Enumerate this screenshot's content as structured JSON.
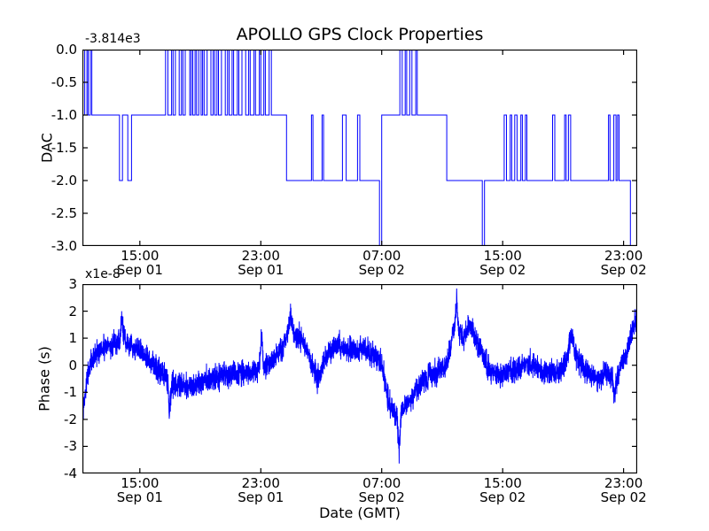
{
  "figure": {
    "background": "#ffffff",
    "frame_color": "#000000"
  },
  "chart_data": [
    {
      "id": "chart-dac",
      "type": "line",
      "subtype": "step",
      "title": "APOLLO GPS Clock Properties",
      "ylabel": "DAC",
      "offset_text": "-3.814e3",
      "line_color": "#0000ff",
      "x_unit": "hours since Sep 01 00:00 GMT",
      "xlim": [
        11.2,
        47.9
      ],
      "ylim": [
        -3,
        0
      ],
      "grid": false,
      "yticks": [
        {
          "v": 0,
          "label": "0.0"
        },
        {
          "v": -0.5,
          "label": "-0.5"
        },
        {
          "v": -1,
          "label": "-1.0"
        },
        {
          "v": -1.5,
          "label": "-1.5"
        },
        {
          "v": -2,
          "label": "-2.0"
        },
        {
          "v": -2.5,
          "label": "-2.5"
        },
        {
          "v": -3,
          "label": "-3.0"
        }
      ],
      "xticks": [
        {
          "t": 15,
          "time": "15:00",
          "date": "Sep 01"
        },
        {
          "t": 23,
          "time": "23:00",
          "date": "Sep 01"
        },
        {
          "t": 31,
          "time": "07:00",
          "date": "Sep 02"
        },
        {
          "t": 39,
          "time": "15:00",
          "date": "Sep 02"
        },
        {
          "t": 47,
          "time": "23:00",
          "date": "Sep 02"
        }
      ],
      "steps": [
        [
          11.2,
          0
        ],
        [
          11.35,
          -1
        ],
        [
          11.5,
          0
        ],
        [
          11.58,
          -1
        ],
        [
          11.72,
          0
        ],
        [
          11.82,
          -1
        ],
        [
          13.65,
          -2
        ],
        [
          13.85,
          -1
        ],
        [
          14.2,
          -2
        ],
        [
          14.45,
          -1
        ],
        [
          16.7,
          0
        ],
        [
          16.85,
          -1
        ],
        [
          17.1,
          0
        ],
        [
          17.2,
          -1
        ],
        [
          17.35,
          0
        ],
        [
          17.6,
          -1
        ],
        [
          17.75,
          0
        ],
        [
          17.85,
          -1
        ],
        [
          18.0,
          0
        ],
        [
          18.3,
          -1
        ],
        [
          18.4,
          0
        ],
        [
          18.5,
          -1
        ],
        [
          18.65,
          0
        ],
        [
          18.75,
          -1
        ],
        [
          18.9,
          0
        ],
        [
          19.05,
          -1
        ],
        [
          19.15,
          0
        ],
        [
          19.25,
          -1
        ],
        [
          19.45,
          0
        ],
        [
          19.7,
          -1
        ],
        [
          19.85,
          0
        ],
        [
          19.95,
          -1
        ],
        [
          20.1,
          0
        ],
        [
          20.2,
          -1
        ],
        [
          20.4,
          0
        ],
        [
          20.65,
          -1
        ],
        [
          20.8,
          0
        ],
        [
          20.9,
          -1
        ],
        [
          21.1,
          0
        ],
        [
          21.2,
          -1
        ],
        [
          21.45,
          0
        ],
        [
          21.55,
          -1
        ],
        [
          21.75,
          0
        ],
        [
          22.0,
          -1
        ],
        [
          22.2,
          0
        ],
        [
          22.3,
          -1
        ],
        [
          22.55,
          0
        ],
        [
          22.65,
          -1
        ],
        [
          22.9,
          0
        ],
        [
          23.0,
          -1
        ],
        [
          23.2,
          0
        ],
        [
          23.3,
          -1
        ],
        [
          23.55,
          0
        ],
        [
          23.7,
          -1
        ],
        [
          24.7,
          -2
        ],
        [
          26.35,
          -1
        ],
        [
          26.45,
          -2
        ],
        [
          27.05,
          -1
        ],
        [
          27.15,
          -2
        ],
        [
          28.4,
          -1
        ],
        [
          28.65,
          -2
        ],
        [
          29.4,
          -1
        ],
        [
          29.55,
          -2
        ],
        [
          30.85,
          -3
        ],
        [
          31.0,
          -1
        ],
        [
          32.2,
          0
        ],
        [
          32.35,
          -1
        ],
        [
          32.55,
          0
        ],
        [
          32.65,
          -1
        ],
        [
          32.85,
          0
        ],
        [
          33.0,
          -1
        ],
        [
          33.25,
          0
        ],
        [
          33.35,
          -1
        ],
        [
          35.3,
          -2
        ],
        [
          37.65,
          -3
        ],
        [
          37.8,
          -2
        ],
        [
          39.1,
          -1
        ],
        [
          39.25,
          -2
        ],
        [
          39.5,
          -1
        ],
        [
          39.6,
          -2
        ],
        [
          39.8,
          -1
        ],
        [
          39.95,
          -2
        ],
        [
          40.2,
          -1
        ],
        [
          40.3,
          -2
        ],
        [
          40.5,
          -1
        ],
        [
          40.6,
          -2
        ],
        [
          42.3,
          -1
        ],
        [
          42.45,
          -2
        ],
        [
          43.1,
          -1
        ],
        [
          43.2,
          -2
        ],
        [
          43.35,
          -1
        ],
        [
          43.5,
          -2
        ],
        [
          46.0,
          -1
        ],
        [
          46.1,
          -2
        ],
        [
          46.35,
          -1
        ],
        [
          46.5,
          -2
        ],
        [
          46.6,
          -1
        ],
        [
          46.7,
          -2
        ],
        [
          47.45,
          -3
        ]
      ]
    },
    {
      "id": "chart-phase",
      "type": "line",
      "subtype": "noisy",
      "ylabel": "Phase (s)",
      "xlabel": "Date (GMT)",
      "scale_text": "x1e-8",
      "line_color": "#0000ff",
      "x_unit": "hours since Sep 01 00:00 GMT",
      "xlim": [
        11.2,
        47.9
      ],
      "ylim": [
        -4,
        3
      ],
      "grid": false,
      "yticks": [
        {
          "v": 3,
          "label": "3"
        },
        {
          "v": 2,
          "label": "2"
        },
        {
          "v": 1,
          "label": "1"
        },
        {
          "v": 0,
          "label": "0"
        },
        {
          "v": -1,
          "label": "-1"
        },
        {
          "v": -2,
          "label": "-2"
        },
        {
          "v": -3,
          "label": "-3"
        },
        {
          "v": -4,
          "label": "-4"
        }
      ],
      "xticks": [
        {
          "t": 15,
          "time": "15:00",
          "date": "Sep 01"
        },
        {
          "t": 23,
          "time": "23:00",
          "date": "Sep 01"
        },
        {
          "t": 31,
          "time": "07:00",
          "date": "Sep 02"
        },
        {
          "t": 39,
          "time": "15:00",
          "date": "Sep 02"
        },
        {
          "t": 47,
          "time": "23:00",
          "date": "Sep 02"
        }
      ],
      "anchors": [
        [
          11.2,
          -1.7
        ],
        [
          11.35,
          -1.3
        ],
        [
          11.5,
          -0.6
        ],
        [
          11.7,
          0.0
        ],
        [
          11.9,
          0.25
        ],
        [
          12.2,
          0.45
        ],
        [
          12.6,
          0.6
        ],
        [
          13.0,
          0.7
        ],
        [
          13.4,
          0.75
        ],
        [
          13.7,
          0.9
        ],
        [
          13.8,
          1.9
        ],
        [
          13.95,
          0.95
        ],
        [
          14.3,
          0.8
        ],
        [
          14.7,
          0.65
        ],
        [
          15.1,
          0.45
        ],
        [
          15.5,
          0.25
        ],
        [
          15.9,
          0.05
        ],
        [
          16.3,
          -0.2
        ],
        [
          16.6,
          -0.4
        ],
        [
          16.85,
          -0.55
        ],
        [
          16.95,
          -2.0
        ],
        [
          17.1,
          -0.65
        ],
        [
          17.5,
          -0.75
        ],
        [
          18.0,
          -0.8
        ],
        [
          18.5,
          -0.7
        ],
        [
          19.0,
          -0.6
        ],
        [
          19.5,
          -0.5
        ],
        [
          20.0,
          -0.45
        ],
        [
          20.5,
          -0.4
        ],
        [
          21.0,
          -0.35
        ],
        [
          21.5,
          -0.3
        ],
        [
          22.0,
          -0.28
        ],
        [
          22.5,
          -0.22
        ],
        [
          22.9,
          -0.12
        ],
        [
          23.05,
          1.1
        ],
        [
          23.2,
          -0.1
        ],
        [
          23.6,
          0.1
        ],
        [
          24.0,
          0.35
        ],
        [
          24.4,
          0.6
        ],
        [
          24.7,
          0.95
        ],
        [
          25.0,
          1.9
        ],
        [
          25.15,
          1.15
        ],
        [
          25.5,
          1.05
        ],
        [
          25.9,
          0.8
        ],
        [
          26.2,
          0.35
        ],
        [
          26.5,
          -0.15
        ],
        [
          26.7,
          -0.5
        ],
        [
          26.95,
          -0.25
        ],
        [
          27.2,
          0.2
        ],
        [
          27.6,
          0.55
        ],
        [
          28.0,
          0.75
        ],
        [
          28.4,
          0.65
        ],
        [
          28.8,
          0.55
        ],
        [
          29.2,
          0.5
        ],
        [
          29.6,
          0.6
        ],
        [
          30.0,
          0.55
        ],
        [
          30.4,
          0.45
        ],
        [
          30.8,
          0.25
        ],
        [
          31.1,
          -0.2
        ],
        [
          31.4,
          -1.2
        ],
        [
          31.7,
          -1.7
        ],
        [
          32.0,
          -1.85
        ],
        [
          32.15,
          -3.2
        ],
        [
          32.3,
          -1.75
        ],
        [
          32.6,
          -1.45
        ],
        [
          33.0,
          -1.15
        ],
        [
          33.4,
          -0.85
        ],
        [
          33.8,
          -0.6
        ],
        [
          34.2,
          -0.4
        ],
        [
          34.6,
          -0.25
        ],
        [
          35.0,
          -0.1
        ],
        [
          35.3,
          0.0
        ],
        [
          35.6,
          0.8
        ],
        [
          35.85,
          1.6
        ],
        [
          35.95,
          2.45
        ],
        [
          36.1,
          1.25
        ],
        [
          36.4,
          0.95
        ],
        [
          36.8,
          1.5
        ],
        [
          37.05,
          1.2
        ],
        [
          37.4,
          0.7
        ],
        [
          37.8,
          0.2
        ],
        [
          38.2,
          -0.2
        ],
        [
          38.6,
          -0.4
        ],
        [
          39.0,
          -0.35
        ],
        [
          39.4,
          -0.25
        ],
        [
          39.8,
          -0.15
        ],
        [
          40.2,
          -0.05
        ],
        [
          40.6,
          0.05
        ],
        [
          41.0,
          0.0
        ],
        [
          41.4,
          -0.1
        ],
        [
          41.8,
          -0.25
        ],
        [
          42.2,
          -0.3
        ],
        [
          42.6,
          -0.2
        ],
        [
          43.0,
          -0.05
        ],
        [
          43.3,
          0.4
        ],
        [
          43.55,
          1.1
        ],
        [
          43.8,
          0.45
        ],
        [
          44.1,
          0.1
        ],
        [
          44.5,
          -0.2
        ],
        [
          44.9,
          -0.4
        ],
        [
          45.3,
          -0.5
        ],
        [
          45.6,
          -0.35
        ],
        [
          45.9,
          -0.3
        ],
        [
          46.25,
          -0.45
        ],
        [
          46.4,
          -1.3
        ],
        [
          46.55,
          -0.45
        ],
        [
          46.8,
          -0.1
        ],
        [
          47.1,
          0.3
        ],
        [
          47.4,
          0.9
        ],
        [
          47.65,
          1.4
        ],
        [
          47.9,
          1.8
        ]
      ],
      "noise": {
        "sigma": 0.22,
        "dt": 0.008,
        "seed": 77
      }
    }
  ]
}
